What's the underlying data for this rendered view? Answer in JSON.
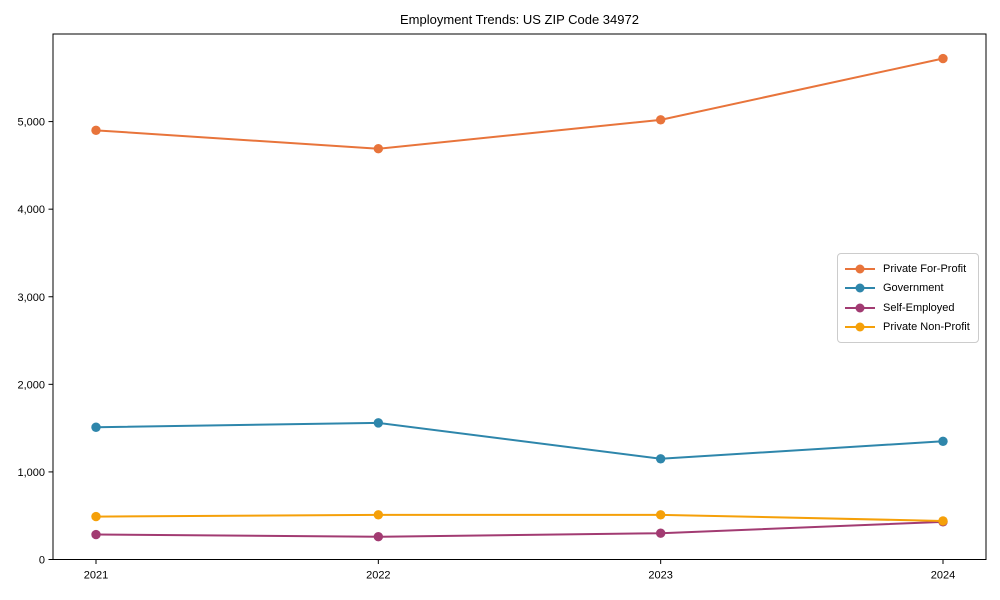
{
  "figure": {
    "background": "#ffffff",
    "axis_color": "#000000"
  },
  "chart_data": {
    "type": "line",
    "title": "Employment Trends: US ZIP Code 34972",
    "categories": [
      "2021",
      "2022",
      "2023",
      "2024"
    ],
    "series": [
      {
        "name": "Private For-Profit",
        "color": "#E8743B",
        "values": [
          4900,
          4690,
          5020,
          5720
        ]
      },
      {
        "name": "Government",
        "color": "#2E86AB",
        "values": [
          1510,
          1560,
          1150,
          1350
        ]
      },
      {
        "name": "Self-Employed",
        "color": "#A23B72",
        "values": [
          285,
          260,
          300,
          430
        ]
      },
      {
        "name": "Private Non-Profit",
        "color": "#F5A009",
        "values": [
          490,
          510,
          510,
          440
        ]
      }
    ],
    "xlabel": "",
    "ylabel": "",
    "ylim": [
      0,
      6000
    ],
    "yticks": [
      0,
      1000,
      2000,
      3000,
      4000,
      5000
    ],
    "ytick_labels": [
      "0",
      "1,000",
      "2,000",
      "3,000",
      "4,000",
      "5,000"
    ],
    "grid": false,
    "legend": {
      "position": "center right",
      "border_color": "#cccccc"
    }
  }
}
